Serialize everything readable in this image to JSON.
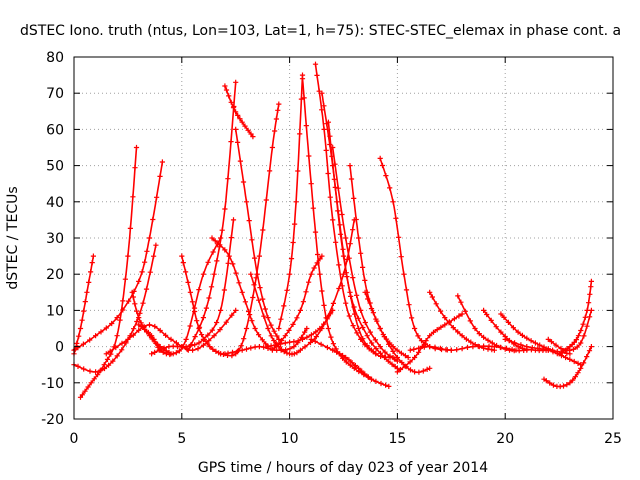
{
  "chart_data": {
    "type": "scatter",
    "title": "dSTEC Iono. truth (ntus, Lon=103, Lat=1, h=75): STEC-STEC_elemax in phase cont. a",
    "xlabel": "GPS time / hours of day 023 of year 2014",
    "ylabel": "dSTEC  / TECUs",
    "xlim": [
      0,
      25
    ],
    "ylim": [
      -20,
      80
    ],
    "xticks": [
      0,
      5,
      10,
      15,
      20,
      25
    ],
    "yticks": [
      -20,
      -10,
      0,
      10,
      20,
      30,
      40,
      50,
      60,
      70,
      80
    ],
    "grid": true,
    "marker": "+",
    "color": "#ff0000",
    "series": [
      {
        "x": [
          0.0,
          0.3,
          0.6,
          0.9
        ],
        "y": [
          -2,
          5,
          15,
          25
        ]
      },
      {
        "x": [
          0.3,
          0.8,
          1.4,
          2.0,
          2.5,
          2.9
        ],
        "y": [
          -14,
          -10,
          -5,
          3,
          25,
          55
        ]
      },
      {
        "x": [
          0.0,
          1.0,
          2.0,
          3.0,
          3.5,
          4.1
        ],
        "y": [
          -1,
          3,
          8,
          18,
          30,
          51
        ]
      },
      {
        "x": [
          0.0,
          1.0,
          1.8,
          2.6,
          3.2,
          3.8
        ],
        "y": [
          -5,
          -7,
          -4,
          3,
          12,
          28
        ]
      },
      {
        "x": [
          2.7,
          3.0,
          3.5,
          4.0,
          4.5
        ],
        "y": [
          15,
          8,
          3,
          0,
          -2
        ]
      },
      {
        "x": [
          1.5,
          2.5,
          3.5,
          4.5,
          5.5,
          6.5,
          7.5
        ],
        "y": [
          -2,
          2,
          6,
          2,
          -1,
          3,
          10
        ]
      },
      {
        "x": [
          3.0,
          3.6,
          4.0,
          4.6,
          5.2,
          6.0,
          6.8
        ],
        "y": [
          6,
          3,
          -1,
          -2,
          2,
          20,
          30
        ]
      },
      {
        "x": [
          3.6,
          4.4,
          5.2,
          6.0,
          6.8,
          7.4
        ],
        "y": [
          -2,
          0,
          0,
          2,
          10,
          35
        ]
      },
      {
        "x": [
          5.0,
          5.4,
          5.8,
          6.3,
          6.8
        ],
        "y": [
          25,
          15,
          5,
          0,
          -2
        ]
      },
      {
        "x": [
          5.3,
          6.0,
          6.5,
          7.0,
          7.5
        ],
        "y": [
          -1,
          8,
          20,
          38,
          73
        ]
      },
      {
        "x": [
          7.0,
          7.4,
          7.8,
          8.3
        ],
        "y": [
          72,
          66,
          62,
          58
        ]
      },
      {
        "x": [
          6.4,
          7.2,
          7.8,
          8.4,
          9.0
        ],
        "y": [
          30,
          25,
          15,
          5,
          0
        ]
      },
      {
        "x": [
          6.8,
          7.5,
          8.0,
          8.6,
          9.2,
          9.5
        ],
        "y": [
          -2,
          -2,
          5,
          25,
          55,
          67
        ]
      },
      {
        "x": [
          7.5,
          8.0,
          8.5,
          9.0,
          9.5
        ],
        "y": [
          60,
          40,
          20,
          8,
          2
        ]
      },
      {
        "x": [
          7.0,
          7.8,
          8.6,
          9.4,
          10.2,
          10.8
        ],
        "y": [
          -2,
          -1,
          0,
          -1,
          0,
          5
        ]
      },
      {
        "x": [
          8.2,
          9.0,
          9.5,
          10.0,
          10.5,
          11.5,
          12.5,
          13.0
        ],
        "y": [
          20,
          5,
          0,
          -2,
          -1,
          5,
          20,
          35
        ]
      },
      {
        "x": [
          9.2,
          9.8,
          10.5,
          11.0,
          11.5
        ],
        "y": [
          -1,
          3,
          10,
          20,
          25
        ]
      },
      {
        "x": [
          9.5,
          10.0,
          10.3,
          10.6
        ],
        "y": [
          5,
          20,
          40,
          75
        ]
      },
      {
        "x": [
          10.6,
          11.0,
          11.4,
          11.8,
          12.3,
          13.0,
          13.8
        ],
        "y": [
          74,
          45,
          20,
          5,
          -2,
          -6,
          -9
        ]
      },
      {
        "x": [
          9.0,
          9.8,
          10.6,
          11.4,
          12.0
        ],
        "y": [
          0,
          1,
          2,
          5,
          10
        ]
      },
      {
        "x": [
          11.2,
          11.6,
          12.0,
          12.6,
          13.3,
          14.0
        ],
        "y": [
          78,
          60,
          35,
          12,
          2,
          -2
        ]
      },
      {
        "x": [
          11.5,
          12.0,
          12.5,
          13.2,
          14.0,
          14.8
        ],
        "y": [
          70,
          50,
          25,
          5,
          -2,
          -3
        ]
      },
      {
        "x": [
          11.8,
          12.2,
          12.8,
          13.6,
          14.4,
          15.0
        ],
        "y": [
          62,
          40,
          15,
          3,
          -3,
          -6
        ]
      },
      {
        "x": [
          12.0,
          12.6,
          13.3,
          14.2,
          15.0
        ],
        "y": [
          55,
          30,
          10,
          0,
          -4
        ]
      },
      {
        "x": [
          11.0,
          12.0,
          12.6,
          13.2,
          13.8,
          14.6
        ],
        "y": [
          2,
          -1,
          -3,
          -6,
          -9,
          -11
        ]
      },
      {
        "x": [
          12.8,
          13.2,
          13.6,
          14.2,
          14.8,
          15.5
        ],
        "y": [
          50,
          30,
          15,
          5,
          0,
          -3
        ]
      },
      {
        "x": [
          14.2,
          14.8,
          15.3,
          15.8,
          16.5,
          17.5
        ],
        "y": [
          52,
          40,
          20,
          5,
          0,
          -1
        ]
      },
      {
        "x": [
          13.5,
          14.2,
          15.0,
          15.8,
          16.5
        ],
        "y": [
          15,
          5,
          -3,
          -7,
          -6
        ]
      },
      {
        "x": [
          15.0,
          15.8,
          16.5,
          17.2,
          18.0
        ],
        "y": [
          -7,
          -3,
          3,
          6,
          9
        ]
      },
      {
        "x": [
          16.5,
          17.2,
          18.0,
          18.8,
          19.5
        ],
        "y": [
          15,
          8,
          3,
          0,
          -1
        ]
      },
      {
        "x": [
          15.6,
          16.5,
          17.5,
          18.5,
          19.5,
          20.5
        ],
        "y": [
          -1,
          0,
          -1,
          0,
          0,
          -1
        ]
      },
      {
        "x": [
          17.8,
          18.6,
          19.4,
          20.2,
          21.0
        ],
        "y": [
          14,
          5,
          1,
          -1,
          -1
        ]
      },
      {
        "x": [
          19.0,
          19.8,
          20.6,
          21.4,
          22.0
        ],
        "y": [
          10,
          4,
          0,
          -1,
          -1
        ]
      },
      {
        "x": [
          19.8,
          20.6,
          21.4,
          22.2,
          23.0
        ],
        "y": [
          9,
          4,
          1,
          -1,
          -2
        ]
      },
      {
        "x": [
          20.0,
          21.0,
          22.0,
          22.8,
          23.5
        ],
        "y": [
          2,
          0,
          -1,
          -3,
          -5
        ]
      },
      {
        "x": [
          21.8,
          22.4,
          23.0,
          23.5,
          24.0
        ],
        "y": [
          -9,
          -11,
          -10,
          -6,
          0
        ]
      },
      {
        "x": [
          22.5,
          23.0,
          23.4,
          23.8,
          24.0
        ],
        "y": [
          -2,
          0,
          3,
          10,
          18
        ]
      },
      {
        "x": [
          22.0,
          22.8,
          23.5,
          24.0
        ],
        "y": [
          2,
          -1,
          1,
          10
        ]
      }
    ]
  }
}
